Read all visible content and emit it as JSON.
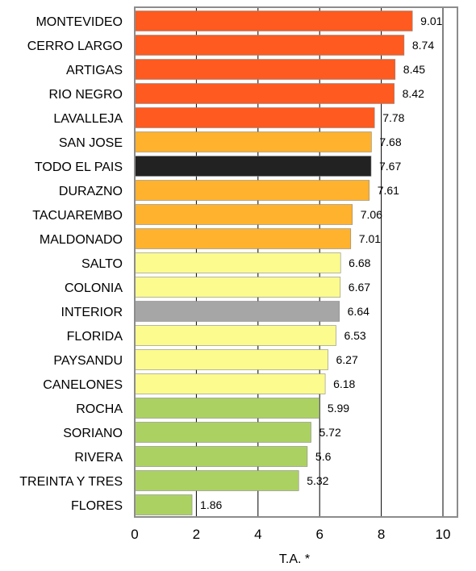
{
  "chart_data": {
    "type": "bar",
    "orientation": "horizontal",
    "categories": [
      "MONTEVIDEO",
      "CERRO LARGO",
      "ARTIGAS",
      "RIO NEGRO",
      "LAVALLEJA",
      "SAN JOSE",
      "TODO EL PAIS",
      "DURAZNO",
      "TACUAREMBO",
      "MALDONADO",
      "SALTO",
      "COLONIA",
      "INTERIOR",
      "FLORIDA",
      "PAYSANDU",
      "CANELONES",
      "ROCHA",
      "SORIANO",
      "RIVERA",
      "TREINTA Y TRES",
      "FLORES"
    ],
    "values": [
      9.01,
      8.74,
      8.45,
      8.42,
      7.78,
      7.68,
      7.67,
      7.61,
      7.06,
      7.01,
      6.68,
      6.67,
      6.64,
      6.53,
      6.27,
      6.18,
      5.99,
      5.72,
      5.6,
      5.32,
      1.86
    ],
    "value_labels": [
      "9.01",
      "8.74",
      "8.45",
      "8.42",
      "7.78",
      "7.68",
      "7.67",
      "7.61",
      "7.06",
      "7.01",
      "6.68",
      "6.67",
      "6.64",
      "6.53",
      "6.27",
      "6.18",
      "5.99",
      "5.72",
      "5.6",
      "5.32",
      "1.86"
    ],
    "bar_colors": [
      "#ff5a1f",
      "#ff5a1f",
      "#ff5a1f",
      "#ff5a1f",
      "#ff5a1f",
      "#ffb22e",
      "#222222",
      "#ffb22e",
      "#ffb22e",
      "#ffb22e",
      "#fbfb8e",
      "#fbfb8e",
      "#a6a6a6",
      "#fbfb8e",
      "#fbfb8e",
      "#fbfb8e",
      "#acd163",
      "#acd163",
      "#acd163",
      "#acd163",
      "#acd163"
    ],
    "xlim": [
      0,
      10
    ],
    "xticks": [
      "0",
      "2",
      "4",
      "6",
      "8",
      "10"
    ],
    "xlabel": "T.A. *",
    "ylabel": "",
    "title": "",
    "grid": "vertical",
    "legend": "none"
  }
}
